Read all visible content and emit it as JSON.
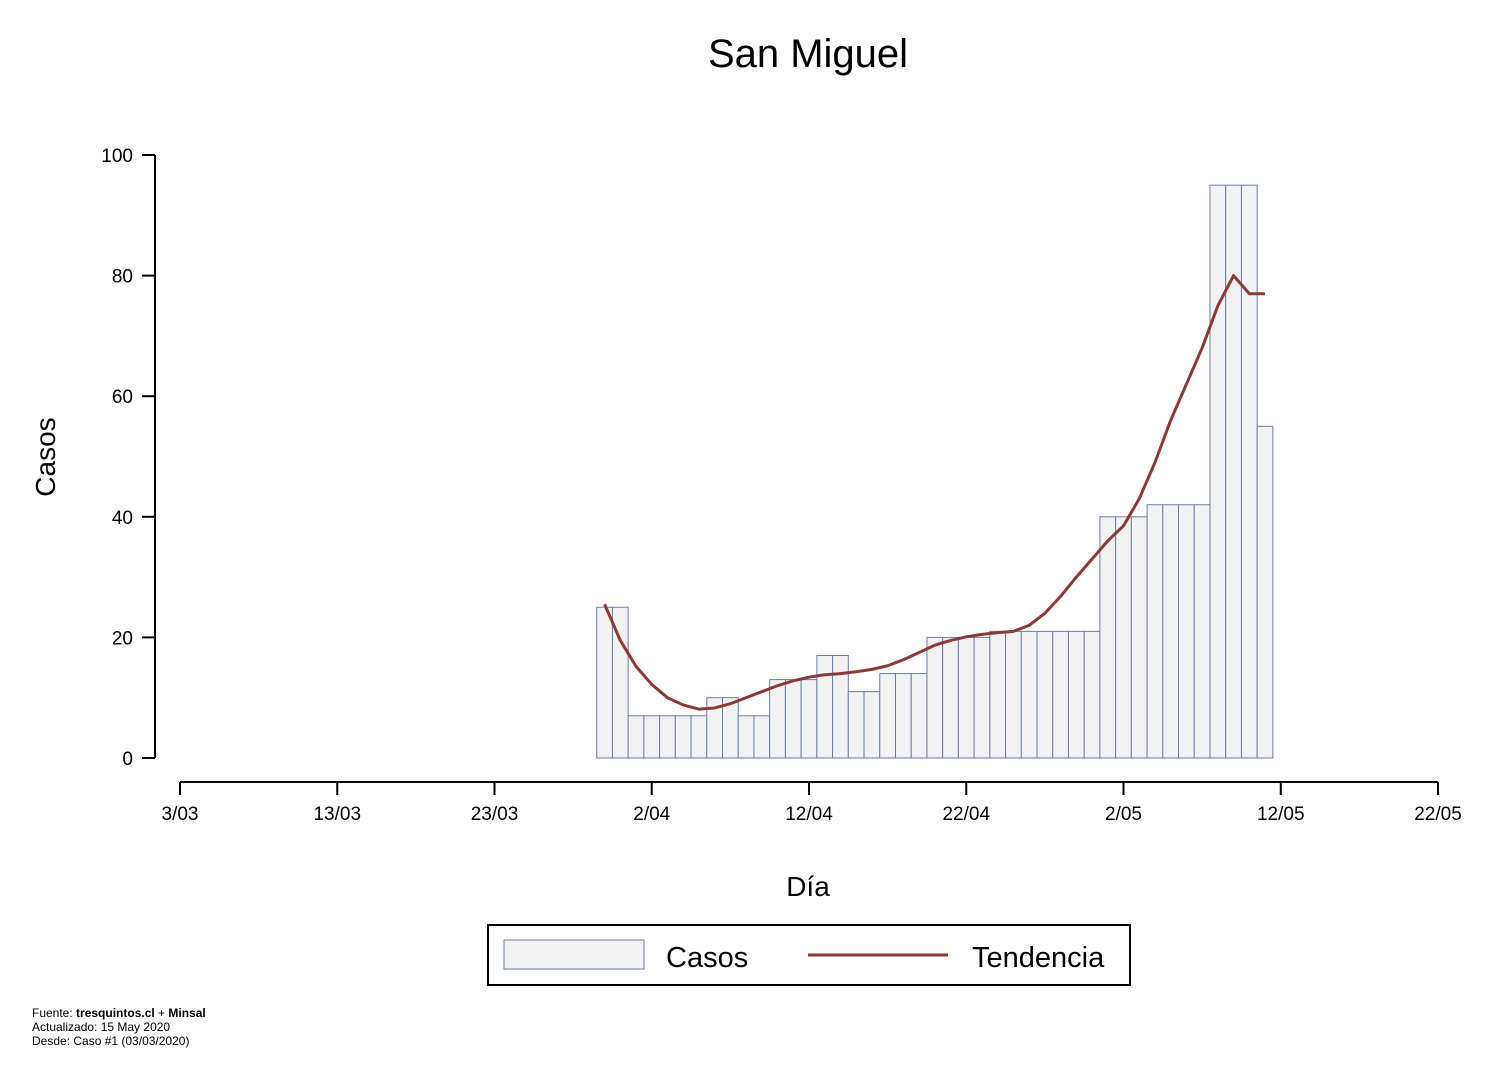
{
  "chart_data": {
    "type": "bar",
    "title": "San Miguel",
    "xlabel": "Día",
    "ylabel": "Casos",
    "ylim": [
      0,
      100
    ],
    "yticks": [
      0,
      20,
      40,
      60,
      80,
      100
    ],
    "xlim": [
      "2020-03-03",
      "2020-05-22"
    ],
    "xticks": [
      {
        "date": "2020-03-03",
        "label": "3/03"
      },
      {
        "date": "2020-03-13",
        "label": "13/03"
      },
      {
        "date": "2020-03-23",
        "label": "23/03"
      },
      {
        "date": "2020-04-02",
        "label": "2/04"
      },
      {
        "date": "2020-04-12",
        "label": "12/04"
      },
      {
        "date": "2020-04-22",
        "label": "22/04"
      },
      {
        "date": "2020-05-02",
        "label": "2/05"
      },
      {
        "date": "2020-05-12",
        "label": "12/05"
      },
      {
        "date": "2020-05-22",
        "label": "22/05"
      }
    ],
    "bar_color": "#f2f2f2",
    "bar_edge_color": "#6a7ea6",
    "trend_color": "#8b3a3a",
    "series": [
      {
        "name": "Casos",
        "x": [
          "2020-03-30",
          "2020-03-31",
          "2020-04-01",
          "2020-04-02",
          "2020-04-03",
          "2020-04-04",
          "2020-04-05",
          "2020-04-06",
          "2020-04-07",
          "2020-04-08",
          "2020-04-09",
          "2020-04-10",
          "2020-04-11",
          "2020-04-12",
          "2020-04-13",
          "2020-04-14",
          "2020-04-15",
          "2020-04-16",
          "2020-04-17",
          "2020-04-18",
          "2020-04-19",
          "2020-04-20",
          "2020-04-21",
          "2020-04-22",
          "2020-04-23",
          "2020-04-24",
          "2020-04-25",
          "2020-04-26",
          "2020-04-27",
          "2020-04-28",
          "2020-04-29",
          "2020-04-30",
          "2020-05-01",
          "2020-05-02",
          "2020-05-03",
          "2020-05-04",
          "2020-05-05",
          "2020-05-06",
          "2020-05-07",
          "2020-05-08",
          "2020-05-09",
          "2020-05-10",
          "2020-05-11"
        ],
        "values": [
          25,
          25,
          7,
          7,
          7,
          7,
          7,
          10,
          10,
          7,
          7,
          13,
          13,
          13,
          17,
          17,
          11,
          11,
          14,
          14,
          14,
          20,
          20,
          20,
          20,
          21,
          21,
          21,
          21,
          21,
          21,
          21,
          40,
          40,
          40,
          42,
          42,
          42,
          42,
          95,
          95,
          95,
          55
        ]
      },
      {
        "name": "Tendencia",
        "x": [
          "2020-03-30",
          "2020-03-31",
          "2020-04-01",
          "2020-04-02",
          "2020-04-03",
          "2020-04-04",
          "2020-04-05",
          "2020-04-06",
          "2020-04-07",
          "2020-04-08",
          "2020-04-09",
          "2020-04-10",
          "2020-04-11",
          "2020-04-12",
          "2020-04-13",
          "2020-04-14",
          "2020-04-15",
          "2020-04-16",
          "2020-04-17",
          "2020-04-18",
          "2020-04-19",
          "2020-04-20",
          "2020-04-21",
          "2020-04-22",
          "2020-04-23",
          "2020-04-24",
          "2020-04-25",
          "2020-04-26",
          "2020-04-27",
          "2020-04-28",
          "2020-04-29",
          "2020-04-30",
          "2020-05-01",
          "2020-05-02",
          "2020-05-03",
          "2020-05-04",
          "2020-05-05",
          "2020-05-06",
          "2020-05-07",
          "2020-05-08",
          "2020-05-09",
          "2020-05-10",
          "2020-05-11"
        ],
        "values": [
          25.5,
          19.5,
          15.2,
          12.2,
          10.0,
          8.8,
          8.1,
          8.3,
          9.0,
          10.0,
          11.0,
          12.0,
          12.8,
          13.4,
          13.8,
          14.0,
          14.3,
          14.7,
          15.3,
          16.3,
          17.5,
          18.7,
          19.5,
          20.1,
          20.5,
          20.8,
          21.0,
          22.0,
          24.0,
          26.8,
          30.0,
          33.0,
          36.0,
          38.5,
          43.0,
          49.0,
          56.0,
          62.0,
          68.0,
          75.0,
          80.0,
          77.0,
          77.0
        ]
      }
    ],
    "legend": {
      "placement": "bottom",
      "items": [
        {
          "label": "Casos",
          "kind": "bar"
        },
        {
          "label": "Tendencia",
          "kind": "line"
        }
      ]
    }
  },
  "footer": {
    "line1_prefix": "Fuente: ",
    "line1_site": "tresquintos.cl",
    "line1_mid": " + ",
    "line1_src": "Minsal",
    "line2": "Actualizado: 15 May 2020",
    "line3": "Desde: Caso #1  (03/03/2020)"
  }
}
